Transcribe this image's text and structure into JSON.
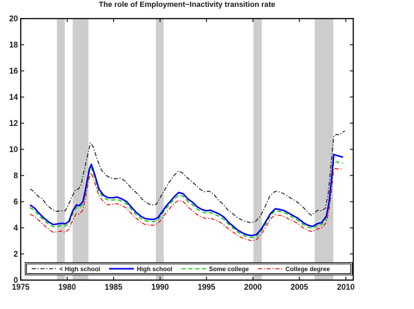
{
  "chart_data": {
    "type": "line",
    "title": "The role of Employment−Inactivity transition rate",
    "xlabel": "",
    "ylabel": "",
    "xlim": [
      1975,
      2010.8
    ],
    "ylim": [
      0,
      20
    ],
    "x_ticks": [
      "1975",
      "1980",
      "1985",
      "1990",
      "1995",
      "2000",
      "2005",
      "2010"
    ],
    "x_tick_values": [
      1975,
      1980,
      1985,
      1990,
      1995,
      2000,
      2005,
      2010
    ],
    "y_ticks": [
      "0",
      "2",
      "4",
      "6",
      "8",
      "10",
      "12",
      "14",
      "16",
      "18",
      "20"
    ],
    "y_tick_values": [
      0,
      2,
      4,
      6,
      8,
      10,
      12,
      14,
      16,
      18,
      20
    ],
    "grid": false,
    "legend_position": "bottom-inside-horizontal",
    "band_color": "#cdcdcd",
    "recession_bands": [
      [
        1978.9,
        1979.75
      ],
      [
        1980.6,
        1982.3
      ],
      [
        1989.55,
        1990.4
      ],
      [
        2000.05,
        2000.95
      ],
      [
        2006.65,
        2008.65
      ]
    ],
    "series": [
      {
        "name": "< High school",
        "color": "#1a1a1a",
        "style": "dash-dot",
        "width": 1.3,
        "x": [
          1976.0,
          1976.3,
          1976.6,
          1977.0,
          1977.3,
          1977.8,
          1978.3,
          1978.8,
          1979.3,
          1979.8,
          1980.1,
          1980.5,
          1980.9,
          1981.2,
          1981.5,
          1982.0,
          1982.5,
          1982.8,
          1983.2,
          1983.7,
          1984.2,
          1984.7,
          1985.2,
          1985.7,
          1986.2,
          1986.7,
          1987.2,
          1987.7,
          1988.2,
          1988.7,
          1989.2,
          1989.6,
          1990.0,
          1990.5,
          1991.0,
          1991.5,
          1992.0,
          1992.4,
          1992.8,
          1993.3,
          1993.8,
          1994.3,
          1994.8,
          1995.3,
          1995.8,
          1996.3,
          1996.8,
          1997.3,
          1997.8,
          1998.3,
          1998.8,
          1999.3,
          1999.8,
          2000.3,
          2000.8,
          2001.3,
          2001.8,
          2002.3,
          2002.6,
          2003.0,
          2003.5,
          2004.0,
          2004.5,
          2005.0,
          2005.5,
          2006.0,
          2006.3,
          2006.7,
          2007.0,
          2007.4,
          2007.8,
          2008.1,
          2008.4,
          2008.7,
          2009.0,
          2009.3,
          2009.6,
          2009.9
        ],
        "y": [
          6.95,
          6.85,
          6.6,
          6.35,
          6.25,
          5.75,
          5.45,
          5.25,
          5.3,
          5.3,
          5.7,
          6.35,
          6.9,
          6.95,
          7.3,
          8.9,
          10.5,
          10.2,
          9.3,
          8.4,
          8.0,
          7.8,
          7.75,
          7.8,
          7.6,
          7.2,
          6.85,
          6.5,
          6.1,
          5.85,
          5.75,
          5.8,
          6.3,
          6.9,
          7.5,
          8.0,
          8.35,
          8.2,
          7.9,
          7.6,
          7.3,
          6.95,
          6.75,
          6.8,
          6.55,
          6.1,
          5.8,
          5.35,
          5.1,
          4.8,
          4.6,
          4.45,
          4.4,
          4.5,
          4.9,
          5.6,
          6.4,
          6.75,
          6.8,
          6.7,
          6.55,
          6.3,
          6.1,
          5.85,
          5.5,
          5.1,
          4.95,
          5.2,
          5.35,
          5.3,
          5.5,
          6.6,
          8.8,
          11.0,
          11.15,
          11.1,
          11.3,
          11.4
        ]
      },
      {
        "name": "High school",
        "color": "#0000ee",
        "style": "solid",
        "width": 2.2,
        "x": [
          1976.0,
          1976.5,
          1977.0,
          1977.5,
          1978.0,
          1978.5,
          1979.0,
          1979.4,
          1979.8,
          1980.2,
          1980.6,
          1981.0,
          1981.3,
          1981.7,
          1982.0,
          1982.4,
          1982.6,
          1983.0,
          1983.4,
          1983.9,
          1984.4,
          1984.9,
          1985.4,
          1985.9,
          1986.4,
          1986.9,
          1987.4,
          1987.9,
          1988.4,
          1988.9,
          1989.4,
          1989.8,
          1990.2,
          1990.7,
          1991.2,
          1991.7,
          1992.0,
          1992.5,
          1993.0,
          1993.5,
          1994.0,
          1994.5,
          1995.0,
          1995.4,
          1995.9,
          1996.4,
          1996.9,
          1997.4,
          1997.9,
          1998.4,
          1998.9,
          1999.4,
          1999.9,
          2000.4,
          2000.9,
          2001.4,
          2001.9,
          2002.4,
          2002.9,
          2003.4,
          2003.9,
          2004.4,
          2004.9,
          2005.4,
          2005.9,
          2006.4,
          2006.9,
          2007.4,
          2007.9,
          2008.2,
          2008.5,
          2008.7,
          2009.2,
          2009.7
        ],
        "y": [
          5.75,
          5.5,
          5.1,
          4.75,
          4.45,
          4.25,
          4.3,
          4.35,
          4.3,
          4.5,
          5.3,
          5.75,
          5.7,
          6.0,
          7.0,
          8.5,
          8.85,
          8.0,
          7.0,
          6.5,
          6.3,
          6.3,
          6.35,
          6.2,
          6.0,
          5.6,
          5.2,
          4.9,
          4.7,
          4.65,
          4.65,
          4.8,
          5.2,
          5.7,
          6.1,
          6.5,
          6.7,
          6.6,
          6.2,
          5.95,
          5.6,
          5.4,
          5.3,
          5.35,
          5.2,
          5.05,
          4.8,
          4.4,
          4.1,
          3.8,
          3.6,
          3.45,
          3.4,
          3.5,
          3.9,
          4.5,
          5.1,
          5.45,
          5.4,
          5.3,
          5.1,
          4.9,
          4.7,
          4.4,
          4.2,
          4.1,
          4.3,
          4.4,
          4.9,
          6.0,
          8.0,
          9.6,
          9.5,
          9.4
        ]
      },
      {
        "name": "Some college",
        "color": "#00cc00",
        "style": "dashed",
        "width": 1.6,
        "x": [
          1976.0,
          1976.5,
          1977.0,
          1977.5,
          1978.0,
          1978.5,
          1979.0,
          1979.4,
          1979.8,
          1980.2,
          1980.6,
          1981.0,
          1981.3,
          1981.7,
          1982.0,
          1982.4,
          1982.6,
          1983.0,
          1983.4,
          1983.9,
          1984.4,
          1984.9,
          1985.4,
          1985.9,
          1986.4,
          1986.9,
          1987.4,
          1987.9,
          1988.4,
          1988.9,
          1989.4,
          1989.8,
          1990.2,
          1990.7,
          1991.2,
          1991.7,
          1992.0,
          1992.5,
          1993.0,
          1993.5,
          1994.0,
          1994.5,
          1995.0,
          1995.4,
          1995.9,
          1996.4,
          1996.9,
          1997.4,
          1997.9,
          1998.4,
          1998.9,
          1999.4,
          1999.9,
          2000.4,
          2000.9,
          2001.4,
          2001.9,
          2002.4,
          2002.9,
          2003.4,
          2003.9,
          2004.4,
          2004.9,
          2005.4,
          2005.9,
          2006.4,
          2006.9,
          2007.4,
          2007.9,
          2008.2,
          2008.5,
          2008.7,
          2009.2,
          2009.7
        ],
        "y": [
          5.55,
          5.3,
          4.92,
          4.58,
          4.28,
          4.08,
          4.12,
          4.18,
          4.12,
          4.33,
          5.1,
          5.56,
          5.52,
          5.8,
          6.8,
          8.3,
          8.6,
          7.8,
          6.82,
          6.32,
          6.12,
          6.12,
          6.17,
          6.02,
          5.82,
          5.42,
          5.02,
          4.72,
          4.53,
          4.48,
          4.48,
          4.62,
          5.02,
          5.52,
          5.92,
          6.3,
          6.5,
          6.42,
          6.02,
          5.77,
          5.42,
          5.22,
          5.12,
          5.17,
          5.02,
          4.87,
          4.62,
          4.25,
          3.95,
          3.65,
          3.45,
          3.3,
          3.25,
          3.35,
          3.75,
          4.35,
          4.95,
          5.3,
          5.25,
          5.15,
          4.95,
          4.75,
          4.55,
          4.25,
          4.05,
          3.95,
          4.15,
          4.25,
          4.72,
          5.8,
          7.8,
          9.1,
          9.0,
          8.95
        ]
      },
      {
        "name": "College degree",
        "color": "#ee0000",
        "style": "dash-dot",
        "width": 1.3,
        "x": [
          1976.0,
          1976.5,
          1977.0,
          1977.5,
          1978.0,
          1978.5,
          1979.0,
          1979.4,
          1979.8,
          1980.2,
          1980.6,
          1981.0,
          1981.3,
          1981.7,
          1982.0,
          1982.4,
          1982.6,
          1983.0,
          1983.4,
          1983.9,
          1984.4,
          1984.9,
          1985.4,
          1985.9,
          1986.4,
          1986.9,
          1987.4,
          1987.9,
          1988.4,
          1988.9,
          1989.4,
          1989.8,
          1990.2,
          1990.7,
          1991.2,
          1991.7,
          1992.0,
          1992.5,
          1993.0,
          1993.5,
          1994.0,
          1994.5,
          1995.0,
          1995.4,
          1995.9,
          1996.4,
          1996.9,
          1997.4,
          1997.9,
          1998.4,
          1998.9,
          1999.4,
          1999.9,
          2000.4,
          2000.9,
          2001.4,
          2001.9,
          2002.4,
          2002.9,
          2003.4,
          2003.9,
          2004.4,
          2004.9,
          2005.4,
          2005.9,
          2006.4,
          2006.9,
          2007.4,
          2007.9,
          2008.2,
          2008.5,
          2008.7,
          2009.2,
          2009.7
        ],
        "y": [
          5.05,
          4.85,
          4.55,
          4.2,
          3.9,
          3.65,
          3.7,
          3.75,
          3.65,
          3.9,
          4.6,
          5.1,
          5.05,
          5.35,
          6.4,
          7.9,
          8.2,
          7.4,
          6.5,
          6.0,
          5.75,
          5.8,
          5.85,
          5.7,
          5.5,
          5.1,
          4.75,
          4.45,
          4.25,
          4.2,
          4.2,
          4.35,
          4.7,
          5.2,
          5.6,
          5.95,
          6.1,
          6.0,
          5.6,
          5.3,
          5.0,
          4.8,
          4.7,
          4.75,
          4.6,
          4.45,
          4.2,
          3.9,
          3.65,
          3.4,
          3.2,
          3.1,
          3.0,
          3.1,
          3.5,
          4.1,
          4.7,
          5.0,
          4.95,
          4.85,
          4.65,
          4.5,
          4.3,
          4.0,
          3.8,
          3.7,
          3.9,
          4.0,
          4.4,
          5.4,
          7.2,
          8.55,
          8.5,
          8.5
        ]
      }
    ]
  }
}
